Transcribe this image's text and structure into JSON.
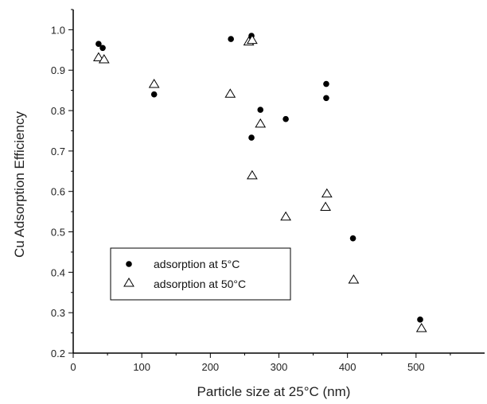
{
  "chart_data": {
    "type": "scatter",
    "title": "",
    "xlabel": "Particle size at 25°C (nm)",
    "ylabel": "Cu Adsorption Efficiency",
    "xlim": [
      0,
      600
    ],
    "ylim": [
      0.2,
      1.05
    ],
    "xticks": [
      0,
      100,
      200,
      300,
      400,
      500
    ],
    "yticks": [
      0.2,
      0.3,
      0.4,
      0.5,
      0.6,
      0.7,
      0.8,
      0.9,
      1.0
    ],
    "xtick_labels": [
      "0",
      "100",
      "200",
      "300",
      "400",
      "500"
    ],
    "ytick_labels": [
      "0.2",
      "0.3",
      "0.4",
      "0.5",
      "0.6",
      "0.7",
      "0.8",
      "0.9",
      "1.0"
    ],
    "grid": false,
    "legend_position": "lower-left",
    "series": [
      {
        "name": "adsorption at 5°C",
        "marker": "filled-circle",
        "color": "#000000",
        "x": [
          37,
          43,
          118,
          230,
          260,
          260,
          273,
          310,
          369,
          369,
          408,
          506
        ],
        "y": [
          0.965,
          0.955,
          0.84,
          0.977,
          0.985,
          0.733,
          0.802,
          0.779,
          0.866,
          0.831,
          0.484,
          0.283
        ]
      },
      {
        "name": "adsorption at 50°C",
        "marker": "open-triangle",
        "color": "#000000",
        "x": [
          37,
          45,
          118,
          229,
          256,
          261,
          261,
          273,
          310,
          368,
          370,
          409,
          508
        ],
        "y": [
          0.933,
          0.928,
          0.867,
          0.843,
          0.972,
          0.976,
          0.641,
          0.769,
          0.539,
          0.563,
          0.596,
          0.383,
          0.263
        ]
      }
    ]
  }
}
